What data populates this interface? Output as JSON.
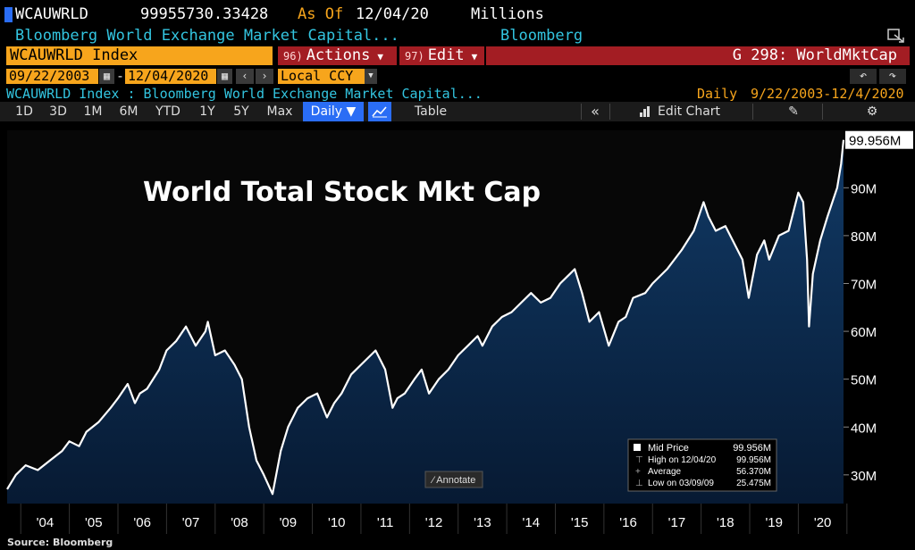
{
  "header": {
    "ticker": "WCAUWRLD",
    "last_value": "99955730.33428",
    "as_of_label": "As Of",
    "as_of_date": "12/04/20",
    "units": "Millions",
    "security_name": "Bloomberg World Exchange Market Capital...",
    "source_name": "Bloomberg"
  },
  "toolbar_row": {
    "ticker_field": "WCAUWRLD Index",
    "actions_num": "96)",
    "actions_label": "Actions",
    "edit_num": "97)",
    "edit_label": "Edit",
    "chart_id": "G 298: WorldMktCap"
  },
  "date_row": {
    "start_date": "09/22/2003",
    "dash": "-",
    "end_date": "12/04/2020",
    "currency": "Local CCY"
  },
  "subtitle_row": {
    "description": "WCAUWRLD Index : Bloomberg World Exchange Market Capital...",
    "frequency": "Daily",
    "range": "9/22/2003-12/4/2020"
  },
  "periods": [
    "1D",
    "3D",
    "1M",
    "6M",
    "YTD",
    "1Y",
    "5Y",
    "Max"
  ],
  "chart_controls": {
    "daily_label": "Daily ▼",
    "table_label": "Table",
    "edit_chart_label": "Edit Chart",
    "annotate_label": "Annotate"
  },
  "footer": {
    "source": "Source: Bloomberg"
  },
  "colors": {
    "amber": "#f7a51c",
    "cyan": "#33c5e0",
    "red_button": "#a31d23",
    "area_fill": "#0c2a4d",
    "line": "#ffffff"
  },
  "chart_data": {
    "type": "area",
    "title": "World Total Stock Mkt Cap",
    "x_ticks": [
      "'04",
      "'05",
      "'06",
      "'07",
      "'08",
      "'09",
      "'10",
      "'11",
      "'12",
      "'13",
      "'14",
      "'15",
      "'16",
      "'17",
      "'18",
      "'19",
      "'20"
    ],
    "y_ticks": [
      "30M",
      "40M",
      "50M",
      "60M",
      "70M",
      "80M",
      "90M"
    ],
    "y_tick_values": [
      30,
      40,
      50,
      60,
      70,
      80,
      90
    ],
    "ylim": [
      24,
      102
    ],
    "xlim": [
      2003.72,
      2020.93
    ],
    "last_value_label": "99.956M",
    "series": [
      {
        "name": "Mid Price",
        "x": [
          2003.72,
          2003.9,
          2004.1,
          2004.35,
          2004.6,
          2004.85,
          2005.0,
          2005.2,
          2005.35,
          2005.6,
          2005.85,
          2006.0,
          2006.2,
          2006.35,
          2006.45,
          2006.6,
          2006.85,
          2007.0,
          2007.2,
          2007.4,
          2007.6,
          2007.8,
          2007.85,
          2008.0,
          2008.2,
          2008.4,
          2008.55,
          2008.7,
          2008.85,
          2009.0,
          2009.18,
          2009.35,
          2009.5,
          2009.7,
          2009.9,
          2010.1,
          2010.3,
          2010.45,
          2010.6,
          2010.8,
          2011.0,
          2011.3,
          2011.5,
          2011.65,
          2011.75,
          2011.9,
          2012.1,
          2012.25,
          2012.4,
          2012.6,
          2012.8,
          2013.0,
          2013.2,
          2013.4,
          2013.5,
          2013.7,
          2013.9,
          2014.1,
          2014.3,
          2014.5,
          2014.7,
          2014.9,
          2015.1,
          2015.3,
          2015.4,
          2015.55,
          2015.7,
          2015.9,
          2016.1,
          2016.3,
          2016.45,
          2016.6,
          2016.85,
          2017.0,
          2017.3,
          2017.6,
          2017.85,
          2018.05,
          2018.15,
          2018.3,
          2018.5,
          2018.7,
          2018.85,
          2018.98,
          2019.15,
          2019.3,
          2019.4,
          2019.6,
          2019.8,
          2020.0,
          2020.1,
          2020.18,
          2020.22,
          2020.3,
          2020.45,
          2020.6,
          2020.7,
          2020.8,
          2020.88,
          2020.93
        ],
        "values": [
          27,
          30,
          32,
          31,
          33,
          35,
          37,
          36,
          39,
          41,
          44,
          46,
          49,
          45,
          47,
          48,
          52,
          56,
          58,
          61,
          57,
          60,
          62,
          55,
          56,
          53,
          50,
          40,
          33,
          30,
          26,
          35,
          40,
          44,
          46,
          47,
          42,
          45,
          47,
          51,
          53,
          56,
          52,
          44,
          46,
          47,
          50,
          52,
          47,
          50,
          52,
          55,
          57,
          59,
          57,
          61,
          63,
          64,
          66,
          68,
          66,
          67,
          70,
          72,
          73,
          68,
          62,
          64,
          57,
          62,
          63,
          67,
          68,
          70,
          73,
          77,
          81,
          87,
          84,
          81,
          82,
          78,
          75,
          67,
          76,
          79,
          75,
          80,
          81,
          89,
          87,
          75,
          61,
          72,
          79,
          84,
          87,
          90,
          95,
          100
        ]
      }
    ],
    "legend": {
      "placement": "bottom-right",
      "rows": [
        {
          "label": "Mid Price",
          "value": "99.956M"
        },
        {
          "label": "High on 12/04/20",
          "value": "99.956M"
        },
        {
          "label": "Average",
          "value": "56.370M"
        },
        {
          "label": "Low on 03/09/09",
          "value": "25.475M"
        }
      ]
    }
  }
}
